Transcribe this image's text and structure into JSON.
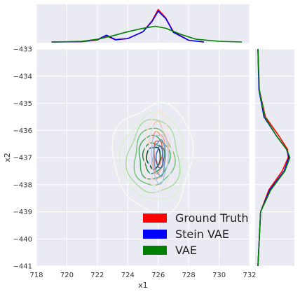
{
  "chart_data": {
    "type": "joint-kde",
    "title": "",
    "xlabel": "x1",
    "ylabel": "x2",
    "xlim": [
      718,
      732
    ],
    "ylim": [
      -441,
      -433
    ],
    "xticks": [
      718,
      720,
      722,
      724,
      726,
      728,
      730,
      732
    ],
    "yticks": [
      -441,
      -440,
      -439,
      -438,
      -437,
      -436,
      -435,
      -434,
      -433
    ],
    "grid": true,
    "legend_position": "lower-right",
    "series": [
      {
        "name": "Ground Truth",
        "color": "#ff0000",
        "marginal_x": [
          [
            719,
            0.0
          ],
          [
            721,
            0.01
          ],
          [
            722,
            0.06
          ],
          [
            722.6,
            0.18
          ],
          [
            723.2,
            0.06
          ],
          [
            724,
            0.1
          ],
          [
            725,
            0.3
          ],
          [
            725.6,
            0.62
          ],
          [
            726,
            0.95
          ],
          [
            726.5,
            0.7
          ],
          [
            727,
            0.3
          ],
          [
            728,
            0.05
          ],
          [
            729,
            0.0
          ]
        ],
        "marginal_y": [
          [
            -433,
            0.0
          ],
          [
            -434.5,
            0.04
          ],
          [
            -435.5,
            0.22
          ],
          [
            -436.2,
            0.62
          ],
          [
            -436.7,
            0.88
          ],
          [
            -437.0,
            0.9
          ],
          [
            -437.5,
            0.72
          ],
          [
            -438.2,
            0.32
          ],
          [
            -439,
            0.08
          ],
          [
            -441,
            0.0
          ]
        ],
        "contour_center": [
          726.0,
          -436.8
        ],
        "contour_radii": [
          [
            0.9,
            1.4
          ],
          [
            0.65,
            1.05
          ],
          [
            0.45,
            0.75
          ],
          [
            0.28,
            0.45
          ]
        ],
        "contour_colors": [
          "#fde3d6",
          "#f9c4ac",
          "#f49c7e",
          "#e8684e"
        ]
      },
      {
        "name": "Stein VAE",
        "color": "#0000ff",
        "marginal_x": [
          [
            719,
            0.0
          ],
          [
            721,
            0.01
          ],
          [
            722,
            0.07
          ],
          [
            722.6,
            0.2
          ],
          [
            723.2,
            0.07
          ],
          [
            724,
            0.1
          ],
          [
            725,
            0.3
          ],
          [
            725.6,
            0.6
          ],
          [
            726,
            0.9
          ],
          [
            726.5,
            0.68
          ],
          [
            727,
            0.28
          ],
          [
            728,
            0.05
          ],
          [
            729,
            0.0
          ]
        ],
        "marginal_y": [
          [
            -433,
            0.0
          ],
          [
            -434.5,
            0.03
          ],
          [
            -435.5,
            0.18
          ],
          [
            -436.2,
            0.55
          ],
          [
            -436.7,
            0.85
          ],
          [
            -437.0,
            0.92
          ],
          [
            -437.5,
            0.78
          ],
          [
            -438.2,
            0.35
          ],
          [
            -439,
            0.08
          ],
          [
            -441,
            0.0
          ]
        ],
        "contour_center": [
          726.1,
          -437.0
        ],
        "contour_radii": [
          [
            0.75,
            1.2
          ],
          [
            0.55,
            0.9
          ],
          [
            0.38,
            0.65
          ],
          [
            0.22,
            0.4
          ]
        ],
        "contour_colors": [
          "#dfe6f5",
          "#b6c8ea",
          "#6f95d1",
          "#3f6bb8"
        ]
      },
      {
        "name": "VAE",
        "color": "#008000",
        "marginal_x": [
          [
            719,
            0.0
          ],
          [
            721,
            0.02
          ],
          [
            722,
            0.08
          ],
          [
            723,
            0.18
          ],
          [
            724,
            0.3
          ],
          [
            725,
            0.4
          ],
          [
            725.8,
            0.46
          ],
          [
            726.5,
            0.4
          ],
          [
            727.5,
            0.22
          ],
          [
            728.5,
            0.08
          ],
          [
            730,
            0.02
          ],
          [
            731.5,
            0.0
          ]
        ],
        "marginal_y": [
          [
            -433,
            0.0
          ],
          [
            -434.5,
            0.04
          ],
          [
            -435.5,
            0.2
          ],
          [
            -436.2,
            0.55
          ],
          [
            -436.7,
            0.85
          ],
          [
            -437.0,
            0.95
          ],
          [
            -437.5,
            0.8
          ],
          [
            -438.2,
            0.38
          ],
          [
            -439,
            0.08
          ],
          [
            -441,
            0.0
          ]
        ],
        "contour_center": [
          725.7,
          -437.0
        ],
        "contour_radii": [
          [
            2.6,
            2.0
          ],
          [
            2.05,
            1.6
          ],
          [
            1.7,
            1.35
          ],
          [
            1.3,
            1.05
          ],
          [
            1.0,
            0.8
          ],
          [
            0.7,
            0.55
          ],
          [
            0.45,
            0.4
          ]
        ],
        "contour_colors": [
          "#f4fbf2",
          "#d9f0d3",
          "#a8dca0",
          "#74c476",
          "#41ab5d",
          "#238b45",
          "#00441b"
        ]
      }
    ]
  }
}
